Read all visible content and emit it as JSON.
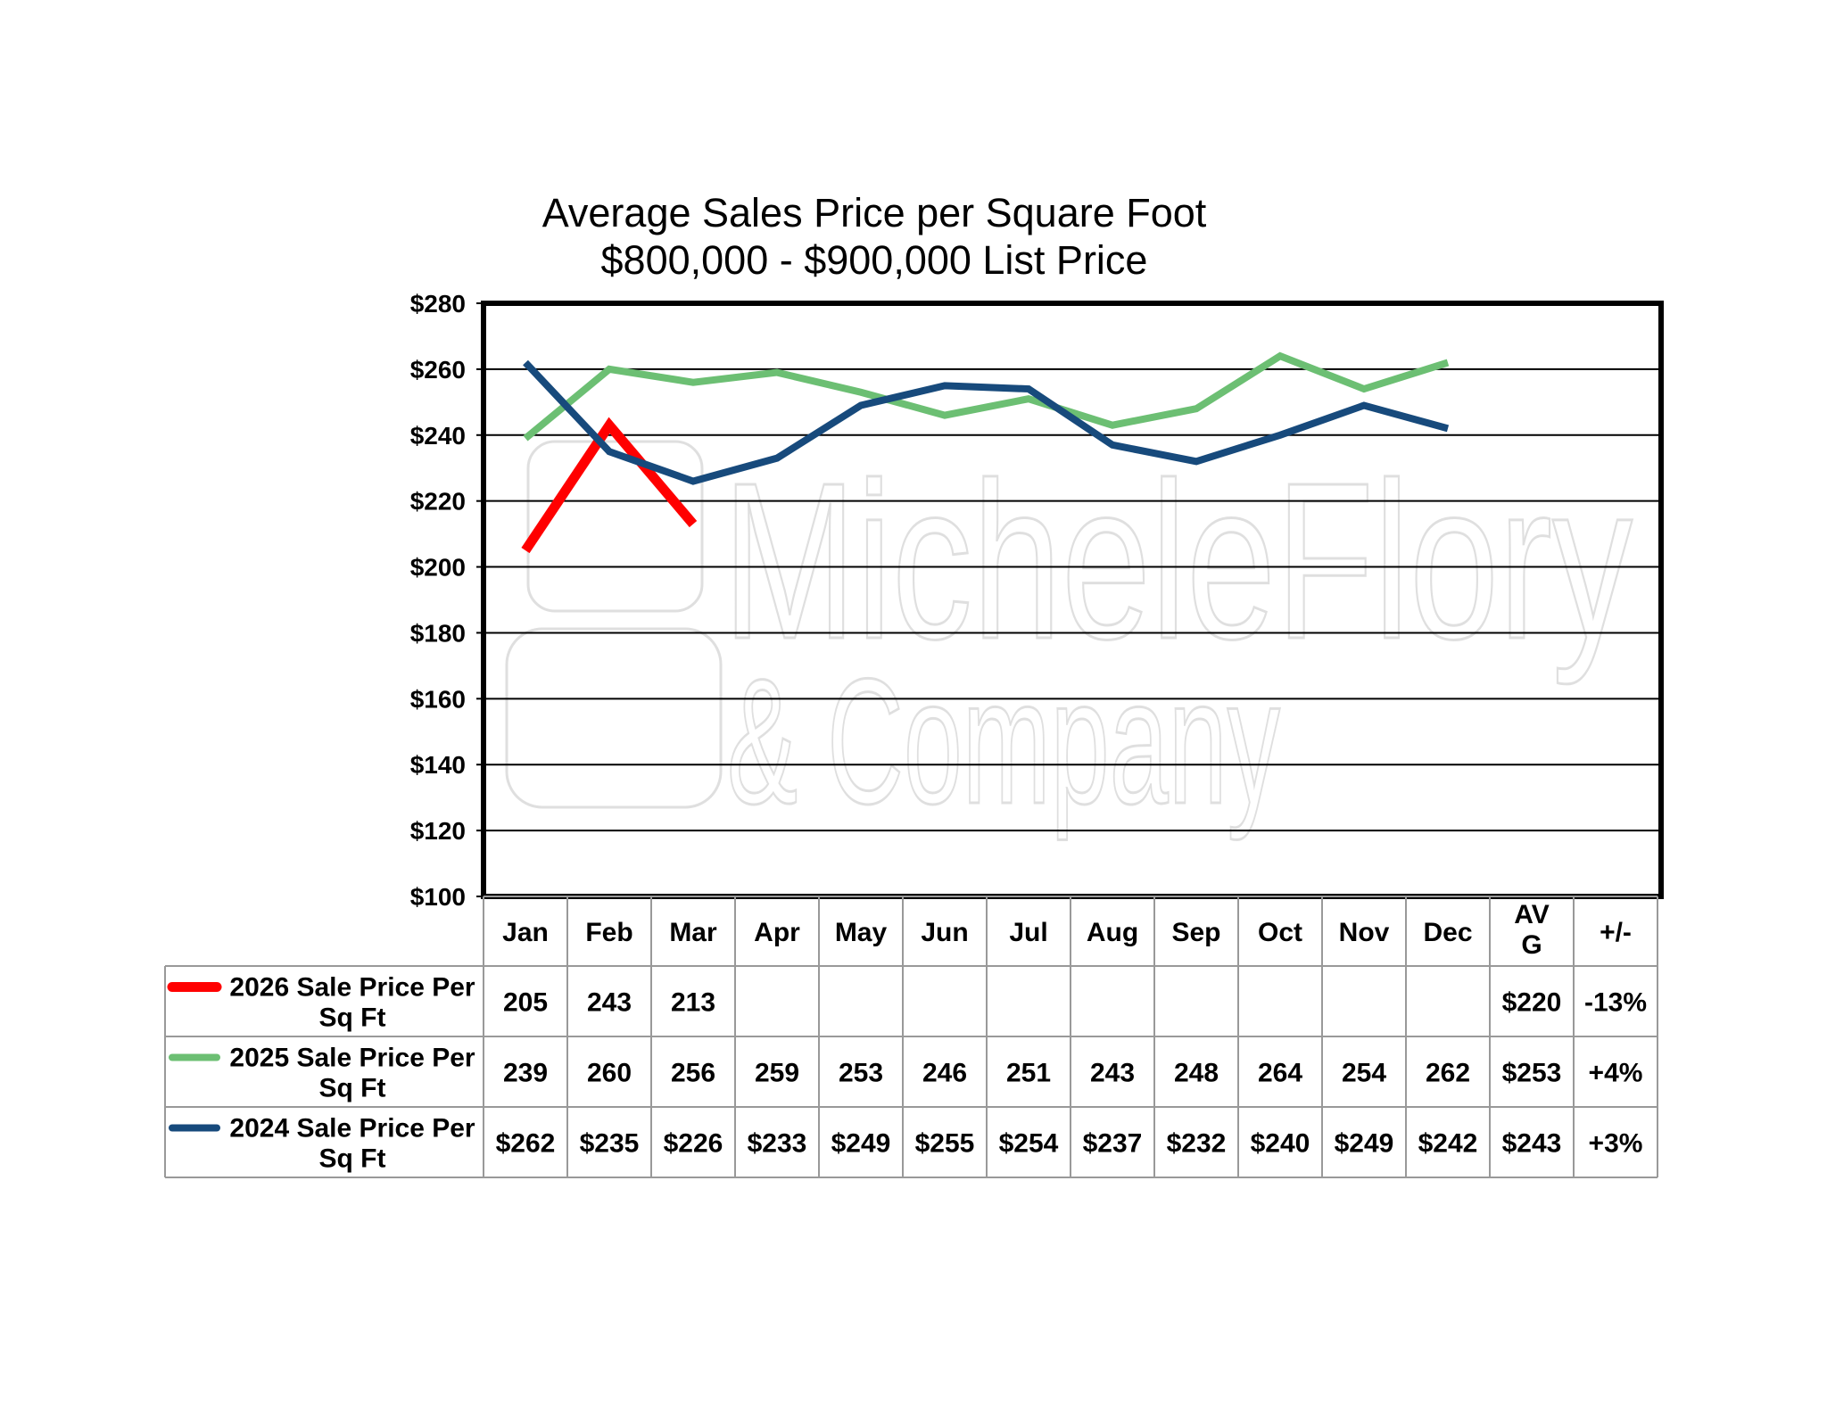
{
  "chart_data": {
    "type": "line",
    "title": "Average Sales Price per Square Foot",
    "subtitle": "$800,000 - $900,000 List Price",
    "ylim": [
      100,
      280
    ],
    "y_ticks": [
      "$100",
      "$120",
      "$140",
      "$160",
      "$180",
      "$200",
      "$220",
      "$240",
      "$260",
      "$280"
    ],
    "y_tick_values": [
      100,
      120,
      140,
      160,
      180,
      200,
      220,
      240,
      260,
      280
    ],
    "grid": true,
    "categories": [
      "Jan",
      "Feb",
      "Mar",
      "Apr",
      "May",
      "Jun",
      "Jul",
      "Aug",
      "Sep",
      "Oct",
      "Nov",
      "Dec"
    ],
    "extra_columns": [
      "AV\nG",
      "+/-"
    ],
    "series": [
      {
        "name": "2026 Sale Price Per Sq Ft",
        "color": "#ff0000",
        "values": [
          205,
          243,
          213,
          null,
          null,
          null,
          null,
          null,
          null,
          null,
          null,
          null
        ],
        "cells": [
          "205",
          "243",
          "213",
          "",
          "",
          "",
          "",
          "",
          "",
          "",
          "",
          ""
        ],
        "avg": "$220",
        "change": "-13%"
      },
      {
        "name": "2025 Sale Price Per Sq Ft",
        "color": "#6cbf73",
        "values": [
          239,
          260,
          256,
          259,
          253,
          246,
          251,
          243,
          248,
          264,
          254,
          262
        ],
        "cells": [
          "239",
          "260",
          "256",
          "259",
          "253",
          "246",
          "251",
          "243",
          "248",
          "264",
          "254",
          "262"
        ],
        "avg": "$253",
        "change": "+4%"
      },
      {
        "name": "2024 Sale Price Per Sq Ft",
        "color": "#174a7c",
        "values": [
          262,
          235,
          226,
          233,
          249,
          255,
          254,
          237,
          232,
          240,
          249,
          242
        ],
        "cells": [
          "$262",
          "$235",
          "$226",
          "$233",
          "$249",
          "$255",
          "$254",
          "$237",
          "$232",
          "$240",
          "$249",
          "$242"
        ],
        "avg": "$243",
        "change": "+3%"
      }
    ],
    "watermark": "MicheleFlory & Company"
  }
}
